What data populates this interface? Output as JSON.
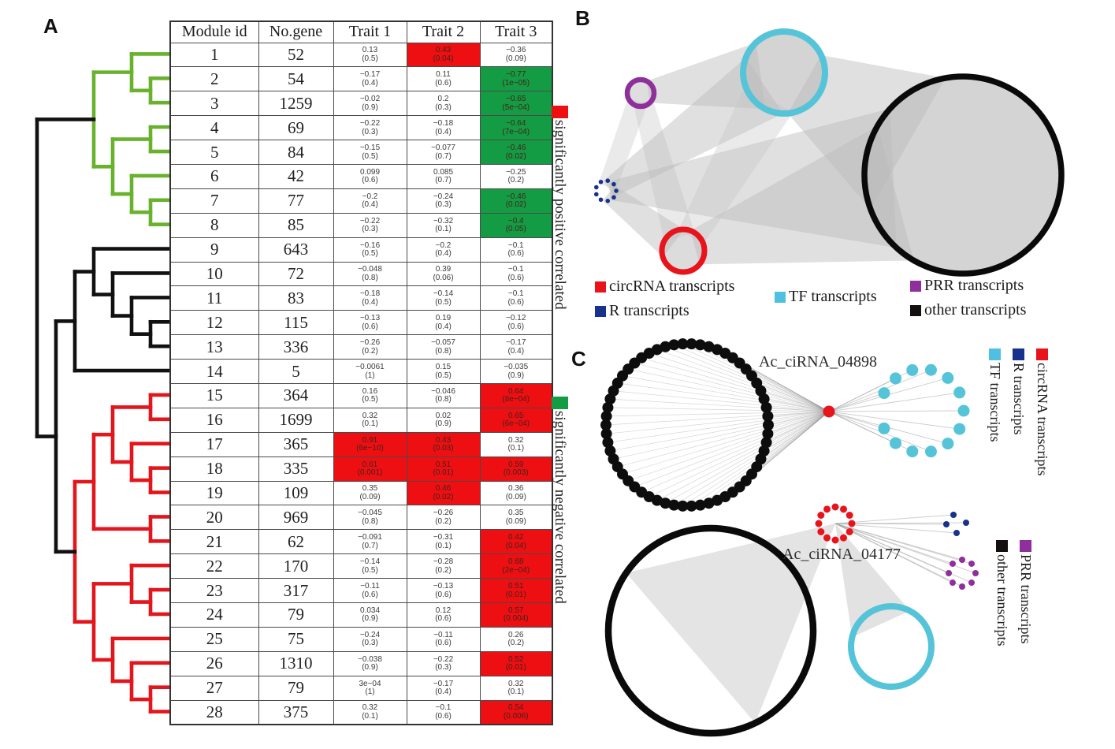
{
  "panels": {
    "a_label": "A",
    "b_label": "B",
    "c_label": "C"
  },
  "colors": {
    "circrna": "#e8131b",
    "r": "#16328c",
    "tf": "#4fc0e0",
    "prr": "#8e2f9c",
    "other": "#151010",
    "table_positive": "#ee0f12",
    "table_negative": "#149c44",
    "dendro_green": "#68b22d",
    "dendro_red": "#e2161c",
    "dendro_black": "#111111"
  },
  "table": {
    "headers": [
      "Module id",
      "No.gene",
      "Trait 1",
      "Trait 2",
      "Trait 3"
    ],
    "rows": [
      {
        "module": "1",
        "genes": "52",
        "t1": {
          "v": "0.13",
          "p": "(0.5)",
          "hl": ""
        },
        "t2": {
          "v": "0.43",
          "p": "(0.04)",
          "hl": "pos"
        },
        "t3": {
          "v": "−0.36",
          "p": "(0.09)",
          "hl": ""
        }
      },
      {
        "module": "2",
        "genes": "54",
        "t1": {
          "v": "−0.17",
          "p": "(0.4)",
          "hl": ""
        },
        "t2": {
          "v": "0.11",
          "p": "(0.6)",
          "hl": ""
        },
        "t3": {
          "v": "−0.77",
          "p": "(1e−05)",
          "hl": "neg"
        }
      },
      {
        "module": "3",
        "genes": "1259",
        "t1": {
          "v": "−0.02",
          "p": "(0.9)",
          "hl": ""
        },
        "t2": {
          "v": "0.2",
          "p": "(0.3)",
          "hl": ""
        },
        "t3": {
          "v": "−0.65",
          "p": "(5e−04)",
          "hl": "neg"
        }
      },
      {
        "module": "4",
        "genes": "69",
        "t1": {
          "v": "−0.22",
          "p": "(0.3)",
          "hl": ""
        },
        "t2": {
          "v": "−0.18",
          "p": "(0.4)",
          "hl": ""
        },
        "t3": {
          "v": "−0.64",
          "p": "(7e−04)",
          "hl": "neg"
        }
      },
      {
        "module": "5",
        "genes": "84",
        "t1": {
          "v": "−0.15",
          "p": "(0.5)",
          "hl": ""
        },
        "t2": {
          "v": "−0.077",
          "p": "(0.7)",
          "hl": ""
        },
        "t3": {
          "v": "−0.46",
          "p": "(0.02)",
          "hl": "neg"
        }
      },
      {
        "module": "6",
        "genes": "42",
        "t1": {
          "v": "0.099",
          "p": "(0.6)",
          "hl": ""
        },
        "t2": {
          "v": "0.085",
          "p": "(0.7)",
          "hl": ""
        },
        "t3": {
          "v": "−0.25",
          "p": "(0.2)",
          "hl": ""
        }
      },
      {
        "module": "7",
        "genes": "77",
        "t1": {
          "v": "−0.2",
          "p": "(0.4)",
          "hl": ""
        },
        "t2": {
          "v": "−0.24",
          "p": "(0.3)",
          "hl": ""
        },
        "t3": {
          "v": "−0.46",
          "p": "(0.02)",
          "hl": "neg"
        }
      },
      {
        "module": "8",
        "genes": "85",
        "t1": {
          "v": "−0.22",
          "p": "(0.3)",
          "hl": ""
        },
        "t2": {
          "v": "−0.32",
          "p": "(0.1)",
          "hl": ""
        },
        "t3": {
          "v": "−0.4",
          "p": "(0.05)",
          "hl": "neg"
        }
      },
      {
        "module": "9",
        "genes": "643",
        "t1": {
          "v": "−0.16",
          "p": "(0.5)",
          "hl": ""
        },
        "t2": {
          "v": "−0.2",
          "p": "(0.4)",
          "hl": ""
        },
        "t3": {
          "v": "−0.1",
          "p": "(0.6)",
          "hl": ""
        }
      },
      {
        "module": "10",
        "genes": "72",
        "t1": {
          "v": "−0.048",
          "p": "(0.8)",
          "hl": ""
        },
        "t2": {
          "v": "0.39",
          "p": "(0.06)",
          "hl": ""
        },
        "t3": {
          "v": "−0.1",
          "p": "(0.6)",
          "hl": ""
        }
      },
      {
        "module": "11",
        "genes": "83",
        "t1": {
          "v": "−0.18",
          "p": "(0.4)",
          "hl": ""
        },
        "t2": {
          "v": "−0.14",
          "p": "(0.5)",
          "hl": ""
        },
        "t3": {
          "v": "−0.1",
          "p": "(0.6)",
          "hl": ""
        }
      },
      {
        "module": "12",
        "genes": "115",
        "t1": {
          "v": "−0.13",
          "p": "(0.6)",
          "hl": ""
        },
        "t2": {
          "v": "0.19",
          "p": "(0.4)",
          "hl": ""
        },
        "t3": {
          "v": "−0.12",
          "p": "(0.6)",
          "hl": ""
        }
      },
      {
        "module": "13",
        "genes": "336",
        "t1": {
          "v": "−0.26",
          "p": "(0.2)",
          "hl": ""
        },
        "t2": {
          "v": "−0.057",
          "p": "(0.8)",
          "hl": ""
        },
        "t3": {
          "v": "−0.17",
          "p": "(0.4)",
          "hl": ""
        }
      },
      {
        "module": "14",
        "genes": "5",
        "t1": {
          "v": "−0.0061",
          "p": "(1)",
          "hl": ""
        },
        "t2": {
          "v": "0.15",
          "p": "(0.5)",
          "hl": ""
        },
        "t3": {
          "v": "−0.035",
          "p": "(0.9)",
          "hl": ""
        }
      },
      {
        "module": "15",
        "genes": "364",
        "t1": {
          "v": "0.16",
          "p": "(0.5)",
          "hl": ""
        },
        "t2": {
          "v": "−0.046",
          "p": "(0.8)",
          "hl": ""
        },
        "t3": {
          "v": "0.64",
          "p": "(8e−04)",
          "hl": "pos"
        }
      },
      {
        "module": "16",
        "genes": "1699",
        "t1": {
          "v": "0.32",
          "p": "(0.1)",
          "hl": ""
        },
        "t2": {
          "v": "0.02",
          "p": "(0.9)",
          "hl": ""
        },
        "t3": {
          "v": "0.65",
          "p": "(6e−04)",
          "hl": "pos"
        }
      },
      {
        "module": "17",
        "genes": "365",
        "t1": {
          "v": "0.91",
          "p": "(6e−10)",
          "hl": "pos"
        },
        "t2": {
          "v": "0.43",
          "p": "(0.03)",
          "hl": "pos"
        },
        "t3": {
          "v": "0.32",
          "p": "(0.1)",
          "hl": ""
        }
      },
      {
        "module": "18",
        "genes": "335",
        "t1": {
          "v": "0.61",
          "p": "(0.001)",
          "hl": "pos"
        },
        "t2": {
          "v": "0.51",
          "p": "(0.01)",
          "hl": "pos"
        },
        "t3": {
          "v": "0.59",
          "p": "(0.003)",
          "hl": "pos"
        }
      },
      {
        "module": "19",
        "genes": "109",
        "t1": {
          "v": "0.35",
          "p": "(0.09)",
          "hl": ""
        },
        "t2": {
          "v": "0.46",
          "p": "(0.02)",
          "hl": "pos"
        },
        "t3": {
          "v": "0.36",
          "p": "(0.09)",
          "hl": ""
        }
      },
      {
        "module": "20",
        "genes": "969",
        "t1": {
          "v": "−0.045",
          "p": "(0.8)",
          "hl": ""
        },
        "t2": {
          "v": "−0.26",
          "p": "(0.2)",
          "hl": ""
        },
        "t3": {
          "v": "0.35",
          "p": "(0.09)",
          "hl": ""
        }
      },
      {
        "module": "21",
        "genes": "62",
        "t1": {
          "v": "−0.091",
          "p": "(0.7)",
          "hl": ""
        },
        "t2": {
          "v": "−0.31",
          "p": "(0.1)",
          "hl": ""
        },
        "t3": {
          "v": "0.42",
          "p": "(0.04)",
          "hl": "pos"
        }
      },
      {
        "module": "22",
        "genes": "170",
        "t1": {
          "v": "−0.14",
          "p": "(0.5)",
          "hl": ""
        },
        "t2": {
          "v": "−0.28",
          "p": "(0.2)",
          "hl": ""
        },
        "t3": {
          "v": "0.68",
          "p": "(2e−04)",
          "hl": "pos"
        }
      },
      {
        "module": "23",
        "genes": "317",
        "t1": {
          "v": "−0.11",
          "p": "(0.6)",
          "hl": ""
        },
        "t2": {
          "v": "−0.13",
          "p": "(0.6)",
          "hl": ""
        },
        "t3": {
          "v": "0.51",
          "p": "(0.01)",
          "hl": "pos"
        }
      },
      {
        "module": "24",
        "genes": "79",
        "t1": {
          "v": "0.034",
          "p": "(0.9)",
          "hl": ""
        },
        "t2": {
          "v": "0.12",
          "p": "(0.6)",
          "hl": ""
        },
        "t3": {
          "v": "0.57",
          "p": "(0.004)",
          "hl": "pos"
        }
      },
      {
        "module": "25",
        "genes": "75",
        "t1": {
          "v": "−0.24",
          "p": "(0.3)",
          "hl": ""
        },
        "t2": {
          "v": "−0.11",
          "p": "(0.6)",
          "hl": ""
        },
        "t3": {
          "v": "0.26",
          "p": "(0.2)",
          "hl": ""
        }
      },
      {
        "module": "26",
        "genes": "1310",
        "t1": {
          "v": "−0.038",
          "p": "(0.9)",
          "hl": ""
        },
        "t2": {
          "v": "−0.22",
          "p": "(0.3)",
          "hl": ""
        },
        "t3": {
          "v": "0.52",
          "p": "(0.01)",
          "hl": "pos"
        }
      },
      {
        "module": "27",
        "genes": "79",
        "t1": {
          "v": "3e−04",
          "p": "(1)",
          "hl": ""
        },
        "t2": {
          "v": "−0.17",
          "p": "(0.4)",
          "hl": ""
        },
        "t3": {
          "v": "0.32",
          "p": "(0.1)",
          "hl": ""
        }
      },
      {
        "module": "28",
        "genes": "375",
        "t1": {
          "v": "0.32",
          "p": "(0.1)",
          "hl": ""
        },
        "t2": {
          "v": "−0.1",
          "p": "(0.6)",
          "hl": ""
        },
        "t3": {
          "v": "0.54",
          "p": "(0.006)",
          "hl": "pos"
        }
      }
    ]
  },
  "correlation_legend": {
    "positive": {
      "label": "significantly positive correlated",
      "color_key": "table_positive"
    },
    "negative": {
      "label": "significantly negative correlated",
      "color_key": "table_negative"
    }
  },
  "dendrogram": {
    "clades": {
      "green": [
        [
          1,
          [
            2,
            3
          ]
        ],
        [
          [
            4,
            5
          ],
          [
            6,
            [
              7,
              8
            ]
          ]
        ]
      ],
      "black": [
        [
          9,
          [
            10,
            [
              11,
              [
                12,
                13
              ]
            ]
          ]
        ],
        14
      ],
      "red": [
        [
          [
            [
              15,
              16
            ],
            [
              17,
              [
                18,
                19
              ]
            ]
          ],
          [
            20,
            21
          ]
        ],
        [
          [
            22,
            [
              23,
              24
            ]
          ],
          [
            25,
            [
              26,
              [
                27,
                28
              ]
            ]
          ]
        ]
      ]
    }
  },
  "network_legend_b": [
    {
      "label": "circRNA transcripts",
      "color_key": "circrna"
    },
    {
      "label": "R transcripts",
      "color_key": "r"
    },
    {
      "label": "TF transcripts",
      "color_key": "tf"
    },
    {
      "label": "PRR transcripts",
      "color_key": "prr"
    },
    {
      "label": "other transcripts",
      "color_key": "other"
    }
  ],
  "panel_c": {
    "top_hub_label": "Ac_ciRNA_04898",
    "bottom_hub_label": "Ac_ciRNA_04177",
    "top_legend": [
      {
        "label": "TF transcripts",
        "color_key": "tf"
      },
      {
        "label": "R transcripts",
        "color_key": "r"
      },
      {
        "label": "circRNA transcripts",
        "color_key": "circrna"
      }
    ],
    "bottom_legend": [
      {
        "label": "other transcripts",
        "color_key": "other"
      },
      {
        "label": "PRR transcripts",
        "color_key": "prr"
      }
    ]
  }
}
